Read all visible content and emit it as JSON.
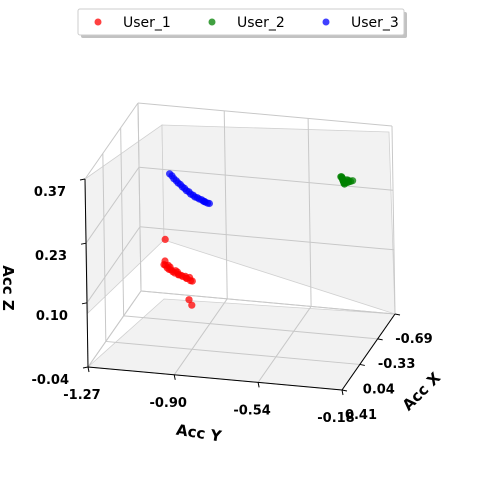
{
  "chart_data": {
    "type": "scatter",
    "projection": "3d",
    "title": "",
    "xlabel": "Acc X",
    "ylabel": "Acc Y",
    "zlabel": "Acc Z",
    "x_ticks": [
      "-0.69",
      "-0.33",
      "0.04",
      "0.41"
    ],
    "y_ticks": [
      "-1.27",
      "-0.90",
      "-0.54",
      "-0.18"
    ],
    "z_ticks": [
      "-0.04",
      "0.10",
      "0.23",
      "0.37"
    ],
    "xlim": [
      -0.69,
      0.41
    ],
    "ylim": [
      -1.27,
      -0.18
    ],
    "zlim": [
      -0.04,
      0.37
    ],
    "grid": true,
    "legend_position": "top",
    "series": [
      {
        "name": "User_1",
        "color": "#ff0000",
        "points": [
          [
            -0.3,
            -1.08,
            0.14
          ],
          [
            -0.1,
            -1.04,
            0.125
          ],
          [
            -0.08,
            -1.04,
            0.12
          ],
          [
            -0.06,
            -1.03,
            0.122
          ],
          [
            -0.07,
            -1.02,
            0.121
          ],
          [
            -0.05,
            -1.02,
            0.118
          ],
          [
            -0.06,
            -1.01,
            0.119
          ],
          [
            -0.04,
            -1.01,
            0.117
          ],
          [
            -0.03,
            -1.0,
            0.118
          ],
          [
            -0.02,
            -0.99,
            0.116
          ],
          [
            -0.03,
            -0.98,
            0.117
          ],
          [
            -0.01,
            -0.98,
            0.115
          ],
          [
            -0.02,
            -0.97,
            0.116
          ],
          [
            0.0,
            -0.96,
            0.114
          ],
          [
            0.01,
            -0.96,
            0.115
          ],
          [
            0.0,
            -0.95,
            0.113
          ],
          [
            0.02,
            -0.94,
            0.114
          ],
          [
            0.01,
            -0.93,
            0.113
          ],
          [
            0.03,
            -0.92,
            0.112
          ],
          [
            0.04,
            -0.92,
            0.114
          ],
          [
            0.02,
            -0.91,
            0.113
          ],
          [
            0.05,
            -0.9,
            0.111
          ],
          [
            0.06,
            -0.89,
            0.112
          ],
          [
            0.18,
            -0.88,
            0.09
          ],
          [
            0.22,
            -0.86,
            0.085
          ]
        ]
      },
      {
        "name": "User_2",
        "color": "#008000",
        "points": [
          [
            -0.06,
            -0.27,
            0.35
          ],
          [
            -0.05,
            -0.265,
            0.352
          ],
          [
            -0.05,
            -0.262,
            0.349
          ],
          [
            -0.04,
            -0.26,
            0.351
          ],
          [
            -0.04,
            -0.258,
            0.348
          ],
          [
            -0.03,
            -0.256,
            0.35
          ],
          [
            -0.03,
            -0.254,
            0.347
          ],
          [
            -0.02,
            -0.252,
            0.349
          ],
          [
            -0.02,
            -0.25,
            0.346
          ],
          [
            -0.01,
            -0.248,
            0.348
          ],
          [
            -0.01,
            -0.246,
            0.345
          ],
          [
            0.0,
            -0.244,
            0.347
          ],
          [
            0.0,
            -0.242,
            0.35
          ],
          [
            0.01,
            -0.24,
            0.346
          ],
          [
            0.01,
            -0.238,
            0.349
          ],
          [
            -0.02,
            -0.236,
            0.351
          ],
          [
            0.0,
            -0.232,
            0.348
          ],
          [
            -0.01,
            -0.228,
            0.352
          ],
          [
            0.0,
            -0.224,
            0.35
          ],
          [
            0.01,
            -0.214,
            0.353
          ],
          [
            0.01,
            -0.205,
            0.355
          ]
        ]
      },
      {
        "name": "User_3",
        "color": "#0000ff",
        "points": [
          [
            -0.6,
            -1.12,
            0.236
          ],
          [
            -0.6,
            -1.11,
            0.232
          ],
          [
            -0.59,
            -1.1,
            0.228
          ],
          [
            -0.59,
            -1.09,
            0.224
          ],
          [
            -0.58,
            -1.08,
            0.221
          ],
          [
            -0.58,
            -1.07,
            0.218
          ],
          [
            -0.57,
            -1.06,
            0.215
          ],
          [
            -0.57,
            -1.05,
            0.212
          ],
          [
            -0.56,
            -1.04,
            0.209
          ],
          [
            -0.56,
            -1.03,
            0.207
          ],
          [
            -0.55,
            -1.02,
            0.204
          ],
          [
            -0.55,
            -1.01,
            0.202
          ],
          [
            -0.54,
            -1.0,
            0.2
          ],
          [
            -0.54,
            -0.99,
            0.199
          ],
          [
            -0.53,
            -0.98,
            0.198
          ],
          [
            -0.53,
            -0.97,
            0.197
          ],
          [
            -0.52,
            -0.96,
            0.196
          ],
          [
            -0.52,
            -0.955,
            0.195
          ],
          [
            -0.51,
            -0.95,
            0.196
          ],
          [
            -0.51,
            -0.94,
            0.194
          ],
          [
            -0.5,
            -0.93,
            0.195
          ]
        ]
      }
    ]
  }
}
